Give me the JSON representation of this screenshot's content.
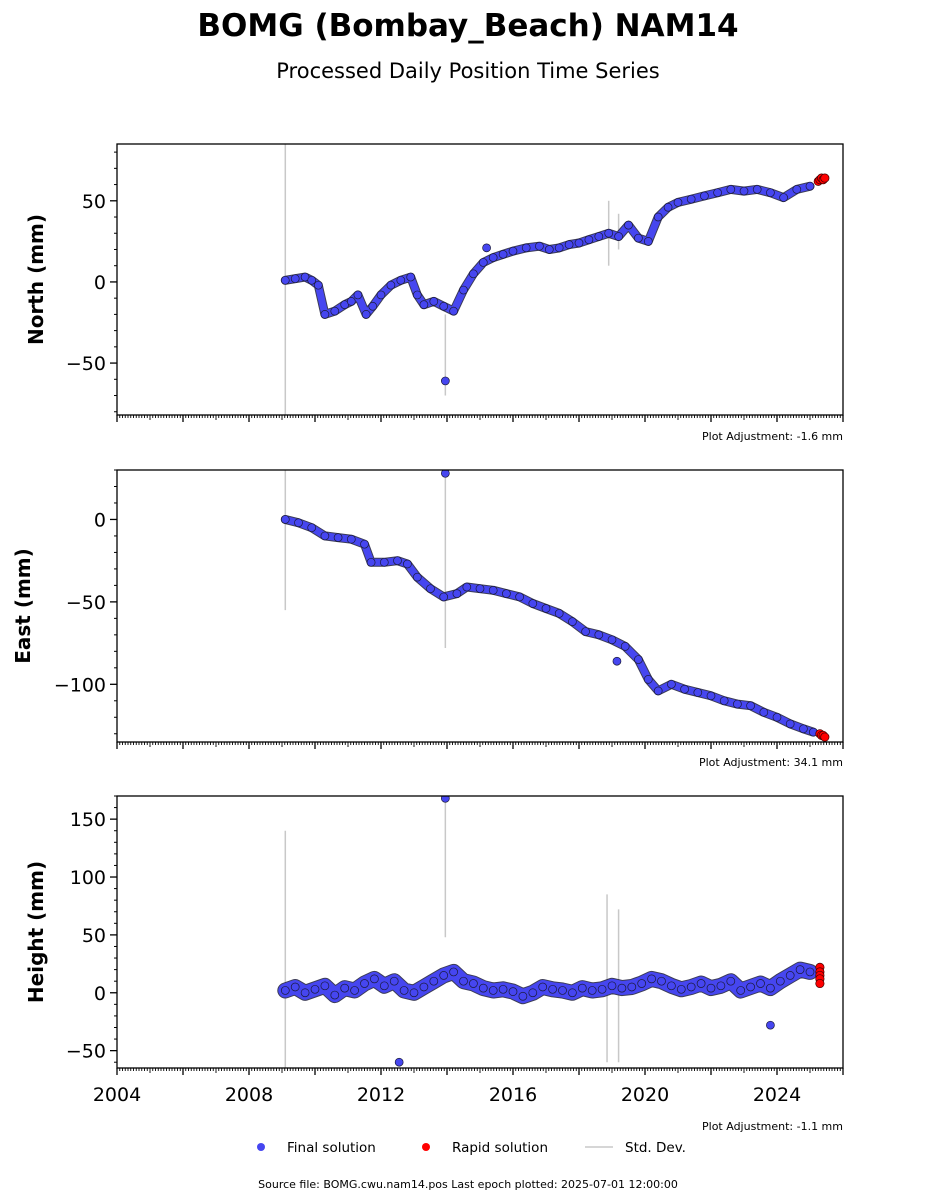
{
  "figure": {
    "title": "BOMG (Bombay_Beach) NAM14",
    "subtitle": "Processed Daily Position Time Series",
    "source_note": "Source file: BOMG.cwu.nam14.pos  Last epoch plotted: 2025-07-01 12:00:00"
  },
  "legend": {
    "final": "Final solution",
    "rapid": "Rapid solution",
    "std": "Std. Dev."
  },
  "colors": {
    "final": "#4646f0",
    "final_edge": "#1a1a3a",
    "rapid": "#ff0000",
    "std": "#c8c8c8"
  },
  "chart_data": [
    {
      "type": "scatter",
      "ylabel": "North (mm)",
      "adjustment": "Plot Adjustment: -1.6 mm",
      "xlim": [
        2004,
        2026
      ],
      "ylim": [
        -82,
        85
      ],
      "yticks": [
        -50,
        0,
        50
      ],
      "ytick_labels": [
        "−50",
        "0",
        "50"
      ],
      "x_tick_labels_visible": false,
      "series": [
        {
          "role": "final",
          "x": [
            2009.1,
            2009.4,
            2009.7,
            2009.9,
            2010.1,
            2010.3,
            2010.6,
            2010.9,
            2011.1,
            2011.3,
            2011.55,
            2011.75,
            2012.0,
            2012.3,
            2012.6,
            2012.9,
            2013.1,
            2013.3,
            2013.6,
            2013.9,
            2014.2,
            2014.5,
            2014.8,
            2015.1,
            2015.4,
            2015.7,
            2016.0,
            2016.4,
            2016.8,
            2017.1,
            2017.4,
            2017.7,
            2018.0,
            2018.3,
            2018.6,
            2018.9,
            2019.2,
            2019.5,
            2019.8,
            2020.1,
            2020.4,
            2020.7,
            2021.0,
            2021.4,
            2021.8,
            2022.2,
            2022.6,
            2023.0,
            2023.4,
            2023.8,
            2024.2,
            2024.6,
            2025.0
          ],
          "y": [
            1,
            2,
            3,
            1,
            -2,
            -20,
            -18,
            -14,
            -12,
            -8,
            -20,
            -15,
            -8,
            -2,
            1,
            3,
            -8,
            -14,
            -12,
            -15,
            -18,
            -5,
            5,
            12,
            15,
            17,
            19,
            21,
            22,
            20,
            21,
            23,
            24,
            26,
            28,
            30,
            28,
            35,
            27,
            25,
            40,
            46,
            49,
            51,
            53,
            55,
            57,
            56,
            57,
            55,
            52,
            57,
            59
          ]
        },
        {
          "role": "outliers",
          "x": [
            2013.95,
            2015.2
          ],
          "y": [
            -61,
            21
          ]
        },
        {
          "role": "rapid",
          "x": [
            2025.25,
            2025.3,
            2025.35,
            2025.4,
            2025.45
          ],
          "y": [
            62,
            63,
            64,
            63,
            64
          ]
        }
      ],
      "error_bars": [
        {
          "x": 2009.1,
          "lo": -82,
          "hi": 85
        },
        {
          "x": 2013.95,
          "lo": -70,
          "hi": -20
        },
        {
          "x": 2018.9,
          "lo": 10,
          "hi": 50
        },
        {
          "x": 2019.2,
          "lo": 20,
          "hi": 42
        }
      ]
    },
    {
      "type": "scatter",
      "ylabel": "East (mm)",
      "adjustment": "Plot Adjustment: 34.1 mm",
      "xlim": [
        2004,
        2026
      ],
      "ylim": [
        -135,
        30
      ],
      "yticks": [
        -100,
        -50,
        0
      ],
      "ytick_labels": [
        "−100",
        "−50",
        "0"
      ],
      "x_tick_labels_visible": false,
      "series": [
        {
          "role": "final",
          "x": [
            2009.1,
            2009.5,
            2009.9,
            2010.3,
            2010.7,
            2011.1,
            2011.5,
            2011.7,
            2012.1,
            2012.5,
            2012.8,
            2013.1,
            2013.5,
            2013.9,
            2014.3,
            2014.6,
            2015.0,
            2015.4,
            2015.8,
            2016.2,
            2016.6,
            2017.0,
            2017.4,
            2017.8,
            2018.2,
            2018.6,
            2019.0,
            2019.4,
            2019.8,
            2020.1,
            2020.4,
            2020.8,
            2021.2,
            2021.6,
            2022.0,
            2022.4,
            2022.8,
            2023.2,
            2023.6,
            2024.0,
            2024.4,
            2024.8,
            2025.1
          ],
          "y": [
            0,
            -2,
            -5,
            -10,
            -11,
            -12,
            -15,
            -26,
            -26,
            -25,
            -27,
            -35,
            -42,
            -47,
            -45,
            -41,
            -42,
            -43,
            -45,
            -47,
            -51,
            -54,
            -57,
            -62,
            -68,
            -70,
            -73,
            -77,
            -85,
            -97,
            -104,
            -100,
            -103,
            -105,
            -107,
            -110,
            -112,
            -113,
            -117,
            -120,
            -124,
            -127,
            -129
          ]
        },
        {
          "role": "outliers",
          "x": [
            2013.95,
            2019.15
          ],
          "y": [
            28,
            -86
          ]
        },
        {
          "role": "rapid",
          "x": [
            2025.3,
            2025.35,
            2025.4,
            2025.45
          ],
          "y": [
            -130,
            -131,
            -131,
            -132
          ]
        }
      ],
      "error_bars": [
        {
          "x": 2009.1,
          "lo": -55,
          "hi": 30
        },
        {
          "x": 2013.95,
          "lo": -78,
          "hi": 28
        }
      ]
    },
    {
      "type": "scatter",
      "ylabel": "Height (mm)",
      "adjustment": "Plot Adjustment: -1.1 mm",
      "xlim": [
        2004,
        2026
      ],
      "ylim": [
        -65,
        170
      ],
      "yticks": [
        -50,
        0,
        50,
        100,
        150
      ],
      "ytick_labels": [
        "−50",
        "0",
        "50",
        "100",
        "150"
      ],
      "xticks": [
        2004,
        2008,
        2012,
        2016,
        2020,
        2024
      ],
      "xtick_labels": [
        "2004",
        "2008",
        "2012",
        "2016",
        "2020",
        "2024"
      ],
      "x_tick_labels_visible": true,
      "series": [
        {
          "role": "final",
          "x": [
            2009.1,
            2009.4,
            2009.7,
            2010.0,
            2010.3,
            2010.6,
            2010.9,
            2011.2,
            2011.5,
            2011.8,
            2012.1,
            2012.4,
            2012.7,
            2013.0,
            2013.3,
            2013.6,
            2013.9,
            2014.2,
            2014.5,
            2014.8,
            2015.1,
            2015.4,
            2015.7,
            2016.0,
            2016.3,
            2016.6,
            2016.9,
            2017.2,
            2017.5,
            2017.8,
            2018.1,
            2018.4,
            2018.7,
            2019.0,
            2019.3,
            2019.6,
            2019.9,
            2020.2,
            2020.5,
            2020.8,
            2021.1,
            2021.4,
            2021.7,
            2022.0,
            2022.3,
            2022.6,
            2022.9,
            2023.2,
            2023.5,
            2023.8,
            2024.1,
            2024.4,
            2024.7,
            2025.0
          ],
          "y": [
            2,
            5,
            0,
            3,
            6,
            -2,
            4,
            2,
            8,
            12,
            6,
            10,
            2,
            0,
            5,
            10,
            15,
            18,
            10,
            8,
            4,
            2,
            3,
            1,
            -3,
            0,
            5,
            3,
            2,
            0,
            4,
            2,
            3,
            6,
            4,
            5,
            8,
            12,
            10,
            6,
            3,
            5,
            8,
            4,
            6,
            10,
            2,
            5,
            8,
            4,
            10,
            15,
            20,
            18
          ]
        },
        {
          "role": "outliers",
          "x": [
            2013.95,
            2012.55,
            2023.8
          ],
          "y": [
            168,
            -60,
            -28
          ]
        },
        {
          "role": "rapid",
          "x": [
            2025.3,
            2025.3,
            2025.3,
            2025.3,
            2025.3
          ],
          "y": [
            22,
            18,
            15,
            12,
            8
          ]
        }
      ],
      "error_bars": [
        {
          "x": 2009.1,
          "lo": -65,
          "hi": 140
        },
        {
          "x": 2013.95,
          "lo": 48,
          "hi": 168
        },
        {
          "x": 2018.85,
          "lo": -60,
          "hi": 85
        },
        {
          "x": 2019.2,
          "lo": -60,
          "hi": 72
        }
      ]
    }
  ]
}
